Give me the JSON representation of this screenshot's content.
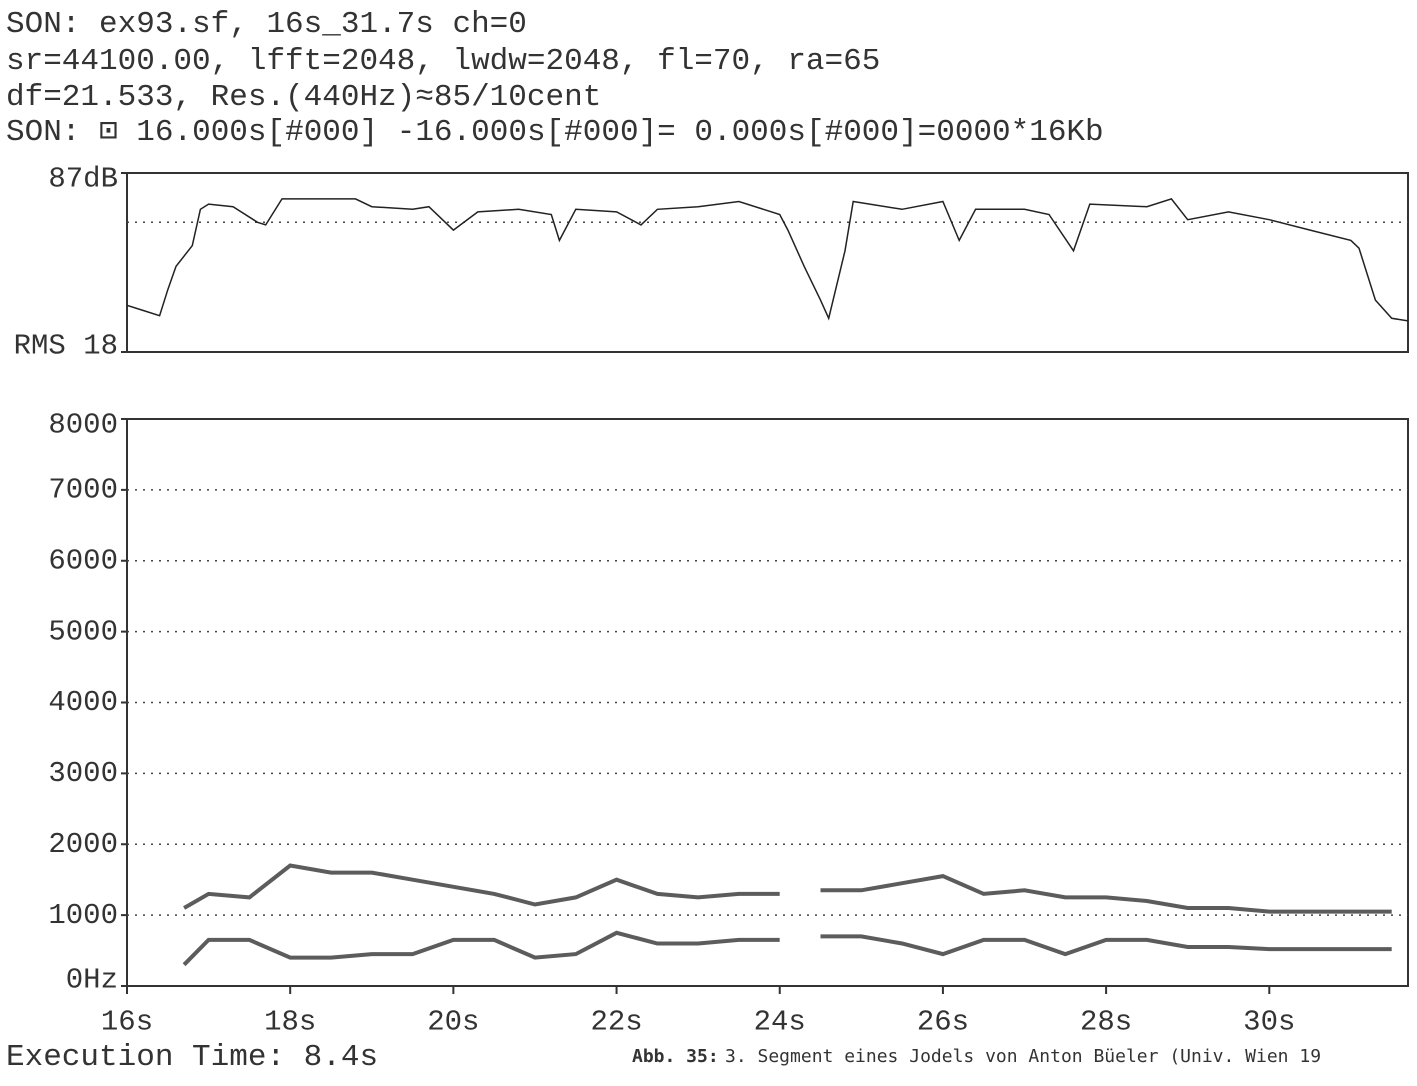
{
  "header": {
    "lines": [
      "SON: ex93.sf, 16s_31.7s ch=0",
      "sr=44100.00, lfft=2048, lwdw=2048, fl=70, ra=65",
      "df=21.533, Res.(440Hz)≈85/10cent",
      "SON: ⊡ 16.000s[#000] -16.000s[#000]= 0.000s[#000]=0000*16Kb"
    ]
  },
  "chart_data": [
    {
      "type": "line",
      "color": "#222222",
      "x": [
        16.0,
        16.2,
        16.4,
        16.5,
        16.6,
        16.8,
        16.9,
        17.0,
        17.3,
        17.6,
        17.7,
        17.9,
        18.3,
        18.8,
        19.0,
        19.5,
        19.7,
        20.0,
        20.3,
        20.8,
        21.2,
        21.3,
        21.5,
        22.0,
        22.3,
        22.5,
        23.0,
        23.5,
        24.0,
        24.1,
        24.3,
        24.5,
        24.6,
        24.8,
        24.9,
        25.5,
        26.0,
        26.2,
        26.4,
        27.0,
        27.3,
        27.6,
        27.8,
        28.5,
        28.8,
        29.0,
        29.5,
        30.0,
        30.5,
        31.0,
        31.1,
        31.3,
        31.5,
        31.7
      ],
      "values": [
        36,
        34,
        32,
        42,
        51,
        59,
        73,
        75,
        74,
        68,
        67,
        77,
        77,
        77,
        74,
        73,
        74,
        65,
        72,
        73,
        71,
        61,
        73,
        72,
        67,
        73,
        74,
        76,
        71,
        65,
        51,
        38,
        31,
        57,
        76,
        73,
        76,
        61,
        73,
        73,
        71,
        57,
        75,
        74,
        77,
        69,
        72,
        69,
        65,
        61,
        58,
        38,
        31,
        30
      ],
      "xlim": [
        16,
        31.7
      ],
      "ylim": [
        18,
        87
      ],
      "yticks": [
        {
          "value": 87,
          "label": "87dB"
        },
        {
          "value": 18,
          "label": "RMS 18"
        }
      ],
      "reference_line": 68
    },
    {
      "type": "spectrogram",
      "xlim": [
        16,
        31.7
      ],
      "ylim": [
        0,
        8000
      ],
      "xticks": [
        {
          "value": 16,
          "label": "16s"
        },
        {
          "value": 18,
          "label": "18s"
        },
        {
          "value": 20,
          "label": "20s"
        },
        {
          "value": 22,
          "label": "22s"
        },
        {
          "value": 24,
          "label": "24s"
        },
        {
          "value": 26,
          "label": "26s"
        },
        {
          "value": 28,
          "label": "28s"
        },
        {
          "value": 30,
          "label": "30s"
        }
      ],
      "yticks": [
        {
          "value": 0,
          "label": "0Hz"
        },
        1000,
        2000,
        3000,
        4000,
        5000,
        6000,
        7000,
        8000
      ],
      "grid": true,
      "x": [
        16.7,
        17.0,
        17.5,
        18.0,
        18.5,
        19.0,
        19.5,
        20.0,
        20.5,
        21.0,
        21.5,
        22.0,
        22.5,
        23.0,
        23.5,
        24.0,
        24.3,
        24.5,
        25.0,
        25.5,
        26.0,
        26.5,
        27.0,
        27.5,
        28.0,
        28.5,
        29.0,
        29.5,
        30.0,
        30.5,
        31.0,
        31.5
      ],
      "series": [
        {
          "color": "#333333",
          "values": [
            300,
            650,
            650,
            400,
            400,
            450,
            450,
            650,
            650,
            400,
            450,
            750,
            600,
            600,
            650,
            650,
            null,
            700,
            700,
            600,
            450,
            650,
            650,
            450,
            650,
            650,
            550,
            550,
            520,
            520,
            520,
            520
          ]
        },
        {
          "color": "#333333",
          "values": [
            1100,
            1300,
            1250,
            1700,
            1600,
            1600,
            1500,
            1400,
            1300,
            1150,
            1250,
            1500,
            1300,
            1250,
            1300,
            1300,
            null,
            1350,
            1350,
            1450,
            1550,
            1300,
            1350,
            1250,
            1250,
            1200,
            1100,
            1100,
            1050,
            1050,
            1050,
            1050
          ]
        }
      ]
    }
  ],
  "footer": {
    "execution": "Execution Time: 8.4s",
    "caption_label": "Abb. 35:",
    "caption_text": "3. Segment eines Jodels von Anton Büeler (Univ. Wien 19"
  }
}
